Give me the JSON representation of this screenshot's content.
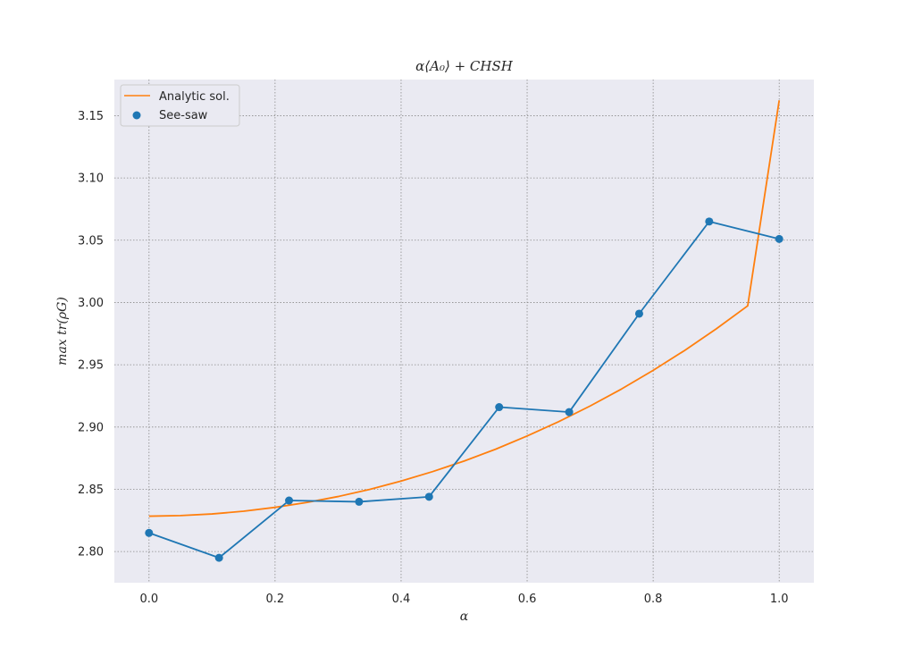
{
  "chart_data": {
    "type": "line",
    "title": "α⟨A₀⟩ + CHSH",
    "xlabel": "α",
    "ylabel": "max tr(ρG)",
    "xlim": [
      -0.055,
      1.055
    ],
    "ylim": [
      2.775,
      3.179
    ],
    "xticks": [
      0.0,
      0.2,
      0.4,
      0.6,
      0.8,
      1.0
    ],
    "xtick_labels": [
      "0.0",
      "0.2",
      "0.4",
      "0.6",
      "0.8",
      "1.0"
    ],
    "yticks": [
      2.8,
      2.85,
      2.9,
      2.95,
      3.0,
      3.05,
      3.1,
      3.15
    ],
    "ytick_labels": [
      "2.80",
      "2.85",
      "2.90",
      "2.95",
      "3.00",
      "3.05",
      "3.10",
      "3.15"
    ],
    "grid": true,
    "legend_position": "top-left",
    "series": [
      {
        "name": "Analytic sol.",
        "color": "#ff7f0e",
        "style": "line",
        "x": [
          0.0,
          0.05,
          0.1,
          0.15,
          0.2,
          0.25,
          0.3,
          0.35,
          0.4,
          0.45,
          0.5,
          0.55,
          0.6,
          0.65,
          0.7,
          0.75,
          0.8,
          0.85,
          0.9,
          0.95,
          1.0
        ],
        "y": [
          2.8284,
          2.8289,
          2.8302,
          2.8324,
          2.8355,
          2.8394,
          2.8442,
          2.8499,
          2.8566,
          2.8642,
          2.8727,
          2.8822,
          2.8928,
          2.9043,
          2.9169,
          2.9306,
          2.9455,
          2.9615,
          2.9788,
          2.9973,
          3.1623
        ]
      },
      {
        "name": "See-saw",
        "color": "#1f77b4",
        "style": "line-markers",
        "x": [
          0.0,
          0.1111,
          0.2222,
          0.3333,
          0.4444,
          0.5556,
          0.6667,
          0.7778,
          0.8889,
          1.0
        ],
        "y": [
          2.815,
          2.795,
          2.841,
          2.84,
          2.844,
          2.916,
          2.912,
          2.991,
          3.065,
          3.051
        ]
      }
    ]
  }
}
